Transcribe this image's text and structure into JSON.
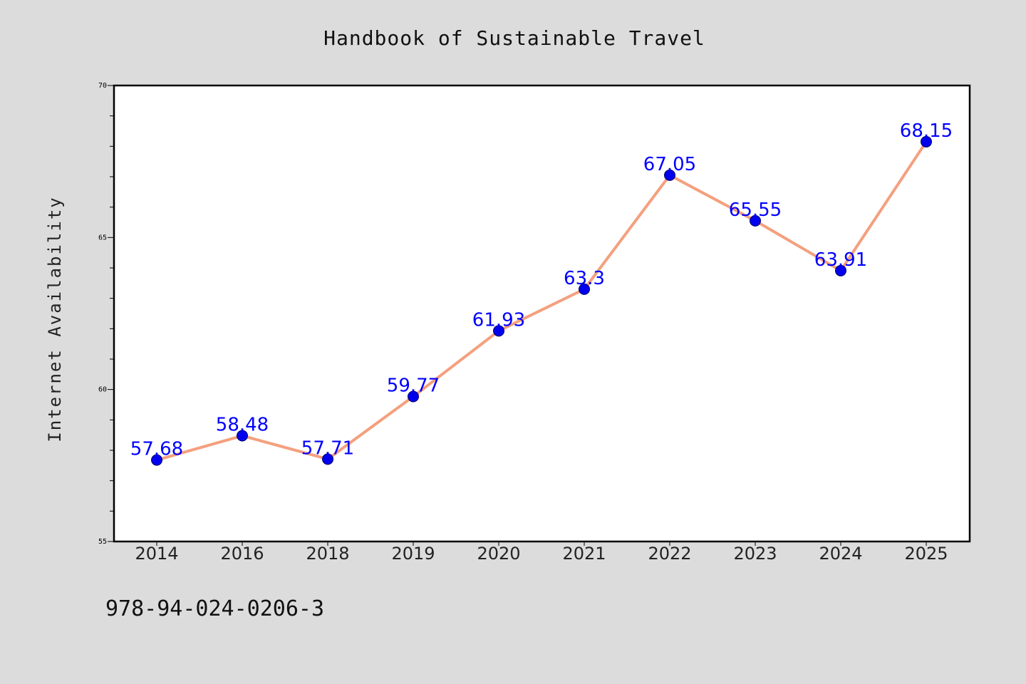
{
  "chart_data": {
    "type": "line",
    "title": "Handbook of Sustainable Travel",
    "ylabel": "Internet Availability",
    "xlabel": "",
    "categories": [
      "2014",
      "2016",
      "2018",
      "2019",
      "2020",
      "2021",
      "2022",
      "2023",
      "2024",
      "2025"
    ],
    "values": [
      57.68,
      58.48,
      57.71,
      59.77,
      61.93,
      63.3,
      67.05,
      65.55,
      63.91,
      68.15
    ],
    "data_labels": [
      "57.68",
      "58.48",
      "57.71",
      "59.77",
      "61.93",
      "63.3",
      "67.05",
      "65.55",
      "63.91",
      "68.15"
    ],
    "ylim": [
      55,
      70
    ],
    "yticks": [
      55,
      60,
      65,
      70
    ],
    "ytick_labels": [
      "55",
      "60",
      "65",
      "70"
    ],
    "y_minor_step": 1,
    "grid": false,
    "line_color": "#f4a07e",
    "marker_color": "#0000ee",
    "label_color": "#0000ff"
  },
  "footer": {
    "isbn": "978-94-024-0206-3"
  }
}
